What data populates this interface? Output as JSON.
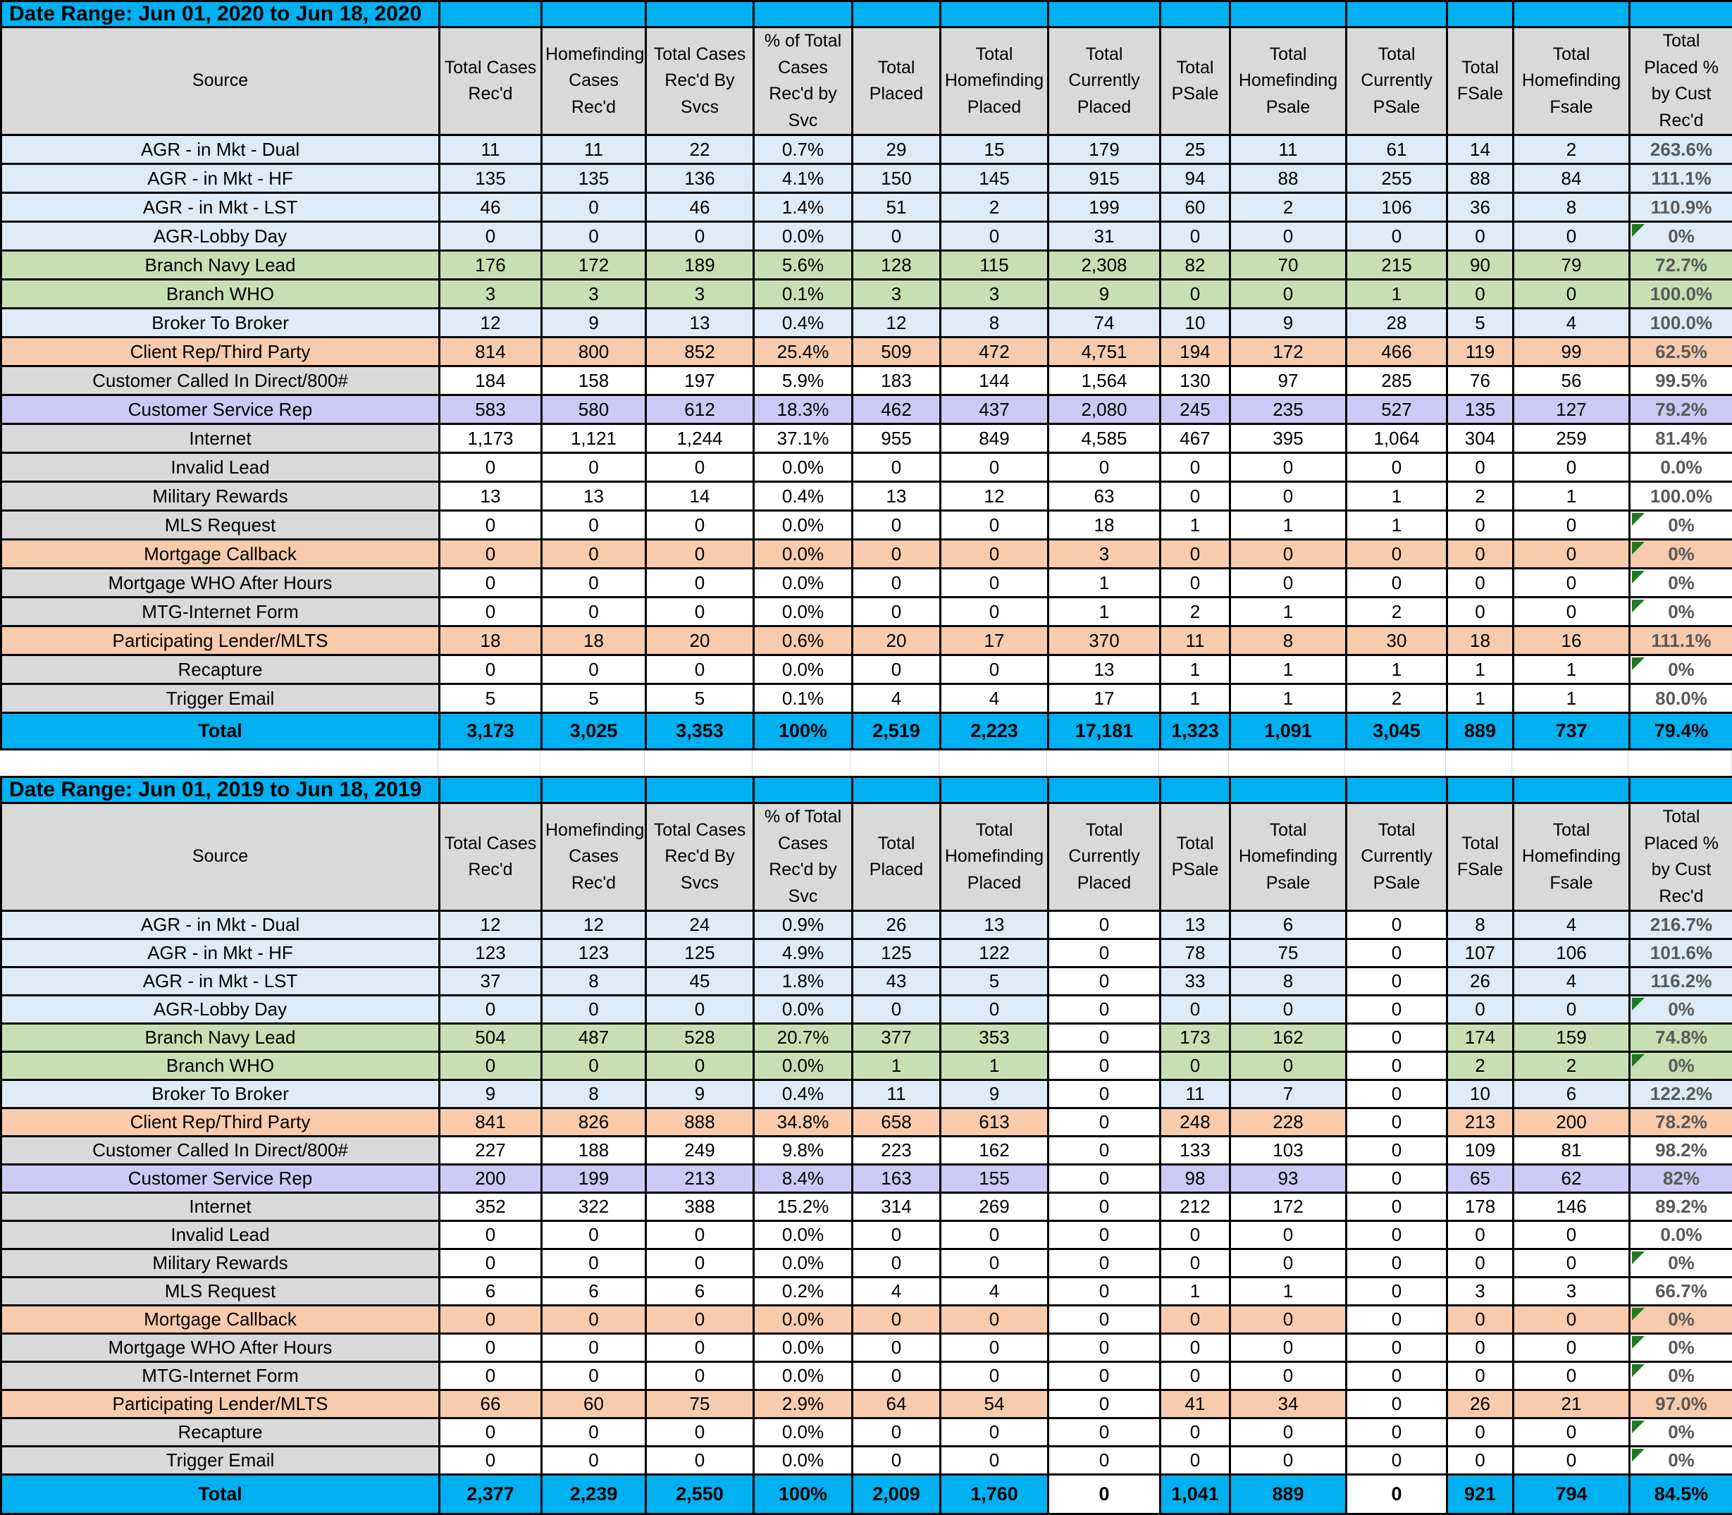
{
  "colors": {
    "banner_cyan": "#00B0F0",
    "header_gray": "#D9D9D9",
    "row_blue": "#DDEBF7",
    "row_green": "#C6E0B4",
    "row_orange": "#F8CBAD",
    "row_purple": "#CCC9F4",
    "label_gray": "#D9D9D9",
    "pct_text_gray": "#595959",
    "error_flag_green": "#1E7A1E",
    "grid_black": "#000000"
  },
  "columns": [
    "Source",
    "Total Cases Rec'd",
    "Homefinding Cases Rec'd",
    "Total Cases Rec'd By Svcs",
    "% of Total Cases Rec'd by Svc",
    "Total Placed",
    "Total Homefinding Placed",
    "Total Currently Placed",
    "Total PSale",
    "Total Homefinding Psale",
    "Total Currently PSale",
    "Total FSale",
    "Total Homefinding Fsale",
    "Total Placed % by Cust Rec'd"
  ],
  "tables": [
    {
      "date_range": "Date Range: Jun 01, 2020 to Jun 18, 2020",
      "white_value_cols": [],
      "rows": [
        {
          "source": "AGR - in Mkt - Dual",
          "style": "blue",
          "values": [
            "11",
            "11",
            "22",
            "0.7%",
            "29",
            "15",
            "179",
            "25",
            "11",
            "61",
            "14",
            "2"
          ],
          "pct": "263.6%",
          "flag": false
        },
        {
          "source": "AGR - in Mkt - HF",
          "style": "blue",
          "values": [
            "135",
            "135",
            "136",
            "4.1%",
            "150",
            "145",
            "915",
            "94",
            "88",
            "255",
            "88",
            "84"
          ],
          "pct": "111.1%",
          "flag": false
        },
        {
          "source": "AGR - in Mkt - LST",
          "style": "blue",
          "values": [
            "46",
            "0",
            "46",
            "1.4%",
            "51",
            "2",
            "199",
            "60",
            "2",
            "106",
            "36",
            "8"
          ],
          "pct": "110.9%",
          "flag": false
        },
        {
          "source": "AGR-Lobby Day",
          "style": "blue",
          "values": [
            "0",
            "0",
            "0",
            "0.0%",
            "0",
            "0",
            "31",
            "0",
            "0",
            "0",
            "0",
            "0"
          ],
          "pct": "0%",
          "flag": true
        },
        {
          "source": "Branch Navy Lead",
          "style": "green",
          "values": [
            "176",
            "172",
            "189",
            "5.6%",
            "128",
            "115",
            "2,308",
            "82",
            "70",
            "215",
            "90",
            "79"
          ],
          "pct": "72.7%",
          "flag": false
        },
        {
          "source": "Branch WHO",
          "style": "green",
          "values": [
            "3",
            "3",
            "3",
            "0.1%",
            "3",
            "3",
            "9",
            "0",
            "0",
            "1",
            "0",
            "0"
          ],
          "pct": "100.0%",
          "flag": false
        },
        {
          "source": "Broker To Broker",
          "style": "blue",
          "values": [
            "12",
            "9",
            "13",
            "0.4%",
            "12",
            "8",
            "74",
            "10",
            "9",
            "28",
            "5",
            "4"
          ],
          "pct": "100.0%",
          "flag": false
        },
        {
          "source": "Client Rep/Third Party",
          "style": "orange",
          "values": [
            "814",
            "800",
            "852",
            "25.4%",
            "509",
            "472",
            "4,751",
            "194",
            "172",
            "466",
            "119",
            "99"
          ],
          "pct": "62.5%",
          "flag": false
        },
        {
          "source": "Customer Called In Direct/800#",
          "style": "graylabel",
          "values": [
            "184",
            "158",
            "197",
            "5.9%",
            "183",
            "144",
            "1,564",
            "130",
            "97",
            "285",
            "76",
            "56"
          ],
          "pct": "99.5%",
          "flag": false
        },
        {
          "source": "Customer Service Rep",
          "style": "purple",
          "values": [
            "583",
            "580",
            "612",
            "18.3%",
            "462",
            "437",
            "2,080",
            "245",
            "235",
            "527",
            "135",
            "127"
          ],
          "pct": "79.2%",
          "flag": false
        },
        {
          "source": "Internet",
          "style": "graylabel",
          "values": [
            "1,173",
            "1,121",
            "1,244",
            "37.1%",
            "955",
            "849",
            "4,585",
            "467",
            "395",
            "1,064",
            "304",
            "259"
          ],
          "pct": "81.4%",
          "flag": false
        },
        {
          "source": "Invalid Lead",
          "style": "graylabel",
          "values": [
            "0",
            "0",
            "0",
            "0.0%",
            "0",
            "0",
            "0",
            "0",
            "0",
            "0",
            "0",
            "0"
          ],
          "pct": "0.0%",
          "flag": false
        },
        {
          "source": "Military Rewards",
          "style": "graylabel",
          "values": [
            "13",
            "13",
            "14",
            "0.4%",
            "13",
            "12",
            "63",
            "0",
            "0",
            "1",
            "2",
            "1"
          ],
          "pct": "100.0%",
          "flag": false
        },
        {
          "source": "MLS Request",
          "style": "graylabel",
          "values": [
            "0",
            "0",
            "0",
            "0.0%",
            "0",
            "0",
            "18",
            "1",
            "1",
            "1",
            "0",
            "0"
          ],
          "pct": "0%",
          "flag": true
        },
        {
          "source": "Mortgage Callback",
          "style": "orange",
          "values": [
            "0",
            "0",
            "0",
            "0.0%",
            "0",
            "0",
            "3",
            "0",
            "0",
            "0",
            "0",
            "0"
          ],
          "pct": "0%",
          "flag": true
        },
        {
          "source": "Mortgage WHO After Hours",
          "style": "graylabel",
          "values": [
            "0",
            "0",
            "0",
            "0.0%",
            "0",
            "0",
            "1",
            "0",
            "0",
            "0",
            "0",
            "0"
          ],
          "pct": "0%",
          "flag": true
        },
        {
          "source": "MTG-Internet Form",
          "style": "graylabel",
          "values": [
            "0",
            "0",
            "0",
            "0.0%",
            "0",
            "0",
            "1",
            "2",
            "1",
            "2",
            "0",
            "0"
          ],
          "pct": "0%",
          "flag": true
        },
        {
          "source": "Participating Lender/MLTS",
          "style": "orange",
          "values": [
            "18",
            "18",
            "20",
            "0.6%",
            "20",
            "17",
            "370",
            "11",
            "8",
            "30",
            "18",
            "16"
          ],
          "pct": "111.1%",
          "flag": false
        },
        {
          "source": "Recapture",
          "style": "graylabel",
          "values": [
            "0",
            "0",
            "0",
            "0.0%",
            "0",
            "0",
            "13",
            "1",
            "1",
            "1",
            "1",
            "1"
          ],
          "pct": "0%",
          "flag": true
        },
        {
          "source": "Trigger Email",
          "style": "graylabel",
          "values": [
            "5",
            "5",
            "5",
            "0.1%",
            "4",
            "4",
            "17",
            "1",
            "1",
            "2",
            "1",
            "1"
          ],
          "pct": "80.0%",
          "flag": false
        }
      ],
      "total": {
        "label": "Total",
        "values": [
          "3,173",
          "3,025",
          "3,353",
          "100%",
          "2,519",
          "2,223",
          "17,181",
          "1,323",
          "1,091",
          "3,045",
          "889",
          "737"
        ],
        "pct": "79.4%"
      }
    },
    {
      "date_range": "Date Range: Jun 01, 2019 to Jun 18, 2019",
      "white_value_cols": [
        6,
        9
      ],
      "rows": [
        {
          "source": "AGR - in Mkt - Dual",
          "style": "blue",
          "values": [
            "12",
            "12",
            "24",
            "0.9%",
            "26",
            "13",
            "0",
            "13",
            "6",
            "0",
            "8",
            "4"
          ],
          "pct": "216.7%",
          "flag": false
        },
        {
          "source": "AGR - in Mkt - HF",
          "style": "blue",
          "values": [
            "123",
            "123",
            "125",
            "4.9%",
            "125",
            "122",
            "0",
            "78",
            "75",
            "0",
            "107",
            "106"
          ],
          "pct": "101.6%",
          "flag": false
        },
        {
          "source": "AGR - in Mkt - LST",
          "style": "blue",
          "values": [
            "37",
            "8",
            "45",
            "1.8%",
            "43",
            "5",
            "0",
            "33",
            "8",
            "0",
            "26",
            "4"
          ],
          "pct": "116.2%",
          "flag": false
        },
        {
          "source": "AGR-Lobby Day",
          "style": "blue",
          "values": [
            "0",
            "0",
            "0",
            "0.0%",
            "0",
            "0",
            "0",
            "0",
            "0",
            "0",
            "0",
            "0"
          ],
          "pct": "0%",
          "flag": true
        },
        {
          "source": "Branch Navy Lead",
          "style": "green",
          "values": [
            "504",
            "487",
            "528",
            "20.7%",
            "377",
            "353",
            "0",
            "173",
            "162",
            "0",
            "174",
            "159"
          ],
          "pct": "74.8%",
          "flag": false
        },
        {
          "source": "Branch WHO",
          "style": "green",
          "values": [
            "0",
            "0",
            "0",
            "0.0%",
            "1",
            "1",
            "0",
            "0",
            "0",
            "0",
            "2",
            "2"
          ],
          "pct": "0%",
          "flag": true
        },
        {
          "source": "Broker To Broker",
          "style": "blue",
          "values": [
            "9",
            "8",
            "9",
            "0.4%",
            "11",
            "9",
            "0",
            "11",
            "7",
            "0",
            "10",
            "6"
          ],
          "pct": "122.2%",
          "flag": false
        },
        {
          "source": "Client Rep/Third Party",
          "style": "orange",
          "values": [
            "841",
            "826",
            "888",
            "34.8%",
            "658",
            "613",
            "0",
            "248",
            "228",
            "0",
            "213",
            "200"
          ],
          "pct": "78.2%",
          "flag": false
        },
        {
          "source": "Customer Called In Direct/800#",
          "style": "graylabel",
          "values": [
            "227",
            "188",
            "249",
            "9.8%",
            "223",
            "162",
            "0",
            "133",
            "103",
            "0",
            "109",
            "81"
          ],
          "pct": "98.2%",
          "flag": false
        },
        {
          "source": "Customer Service Rep",
          "style": "purple",
          "values": [
            "200",
            "199",
            "213",
            "8.4%",
            "163",
            "155",
            "0",
            "98",
            "93",
            "0",
            "65",
            "62"
          ],
          "pct": "82%",
          "flag": false
        },
        {
          "source": "Internet",
          "style": "graylabel",
          "values": [
            "352",
            "322",
            "388",
            "15.2%",
            "314",
            "269",
            "0",
            "212",
            "172",
            "0",
            "178",
            "146"
          ],
          "pct": "89.2%",
          "flag": false
        },
        {
          "source": "Invalid Lead",
          "style": "graylabel",
          "values": [
            "0",
            "0",
            "0",
            "0.0%",
            "0",
            "0",
            "0",
            "0",
            "0",
            "0",
            "0",
            "0"
          ],
          "pct": "0.0%",
          "flag": false
        },
        {
          "source": "Military Rewards",
          "style": "graylabel",
          "values": [
            "0",
            "0",
            "0",
            "0.0%",
            "0",
            "0",
            "0",
            "0",
            "0",
            "0",
            "0",
            "0"
          ],
          "pct": "0%",
          "flag": true
        },
        {
          "source": "MLS Request",
          "style": "graylabel",
          "values": [
            "6",
            "6",
            "6",
            "0.2%",
            "4",
            "4",
            "0",
            "1",
            "1",
            "0",
            "3",
            "3"
          ],
          "pct": "66.7%",
          "flag": false
        },
        {
          "source": "Mortgage Callback",
          "style": "orange",
          "values": [
            "0",
            "0",
            "0",
            "0.0%",
            "0",
            "0",
            "0",
            "0",
            "0",
            "0",
            "0",
            "0"
          ],
          "pct": "0%",
          "flag": true
        },
        {
          "source": "Mortgage WHO After Hours",
          "style": "graylabel",
          "values": [
            "0",
            "0",
            "0",
            "0.0%",
            "0",
            "0",
            "0",
            "0",
            "0",
            "0",
            "0",
            "0"
          ],
          "pct": "0%",
          "flag": true
        },
        {
          "source": "MTG-Internet Form",
          "style": "graylabel",
          "values": [
            "0",
            "0",
            "0",
            "0.0%",
            "0",
            "0",
            "0",
            "0",
            "0",
            "0",
            "0",
            "0"
          ],
          "pct": "0%",
          "flag": true
        },
        {
          "source": "Participating Lender/MLTS",
          "style": "orange",
          "values": [
            "66",
            "60",
            "75",
            "2.9%",
            "64",
            "54",
            "0",
            "41",
            "34",
            "0",
            "26",
            "21"
          ],
          "pct": "97.0%",
          "flag": false
        },
        {
          "source": "Recapture",
          "style": "graylabel",
          "values": [
            "0",
            "0",
            "0",
            "0.0%",
            "0",
            "0",
            "0",
            "0",
            "0",
            "0",
            "0",
            "0"
          ],
          "pct": "0%",
          "flag": true
        },
        {
          "source": "Trigger Email",
          "style": "graylabel",
          "values": [
            "0",
            "0",
            "0",
            "0.0%",
            "0",
            "0",
            "0",
            "0",
            "0",
            "0",
            "0",
            "0"
          ],
          "pct": "0%",
          "flag": true
        }
      ],
      "total": {
        "label": "Total",
        "values": [
          "2,377",
          "2,239",
          "2,550",
          "100%",
          "2,009",
          "1,760",
          "0",
          "1,041",
          "889",
          "0",
          "921",
          "794"
        ],
        "pct": "84.5%"
      }
    }
  ]
}
